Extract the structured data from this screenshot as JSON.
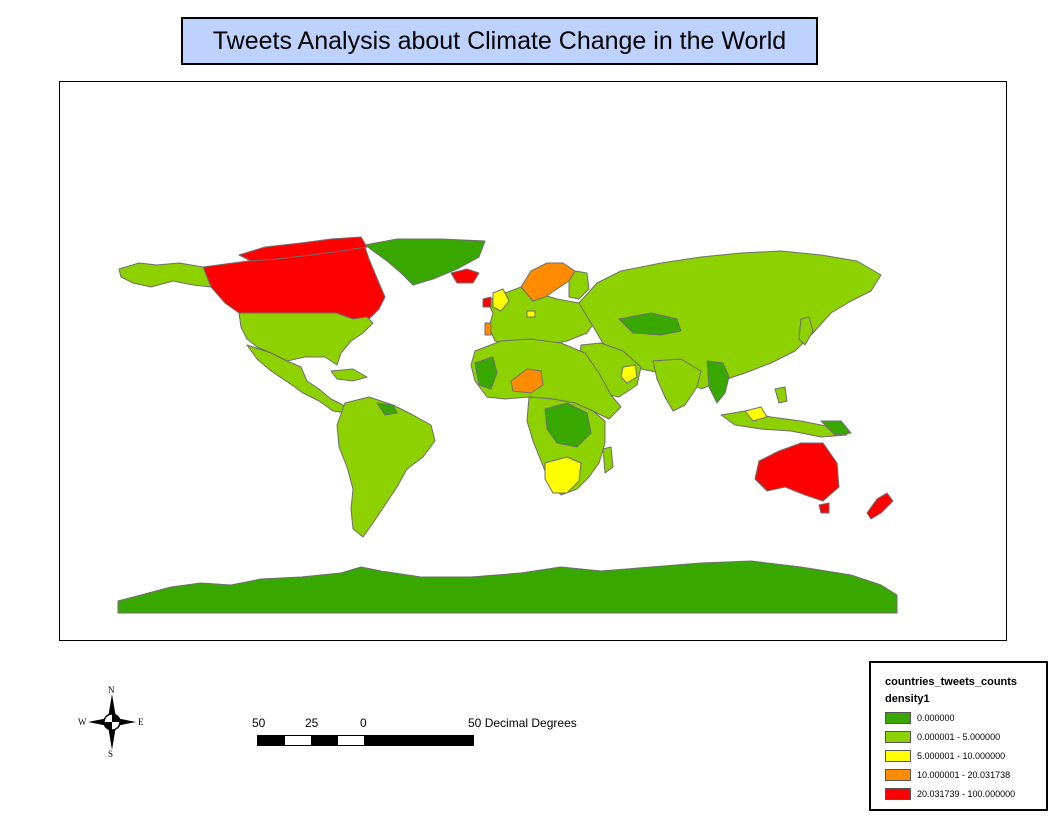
{
  "title": "Tweets Analysis about Climate Change in the World",
  "map": {
    "border_color": "#6e6e6e",
    "ocean_color": "#ffffff",
    "class_colors": {
      "c0": "#38a800",
      "c1": "#8ed100",
      "c2": "#ffff00",
      "c3": "#ff8c00",
      "c4": "#ff0000"
    }
  },
  "north_arrow": {
    "n": "N",
    "s": "S",
    "e": "E",
    "w": "W"
  },
  "scalebar": {
    "labels": [
      "50",
      "25",
      "0",
      "50"
    ],
    "units": "Decimal Degrees"
  },
  "legend": {
    "layer_name": "countries_tweets_counts",
    "field_name": "density1",
    "items": [
      {
        "label": "0.000000",
        "color": "#38a800"
      },
      {
        "label": "0.000001 - 5.000000",
        "color": "#8ed100"
      },
      {
        "label": "5.000001 - 10.000000",
        "color": "#ffff00"
      },
      {
        "label": "10.000001 - 20.031738",
        "color": "#ff8c00"
      },
      {
        "label": "20.031739 - 100.000000",
        "color": "#ff0000"
      }
    ]
  }
}
